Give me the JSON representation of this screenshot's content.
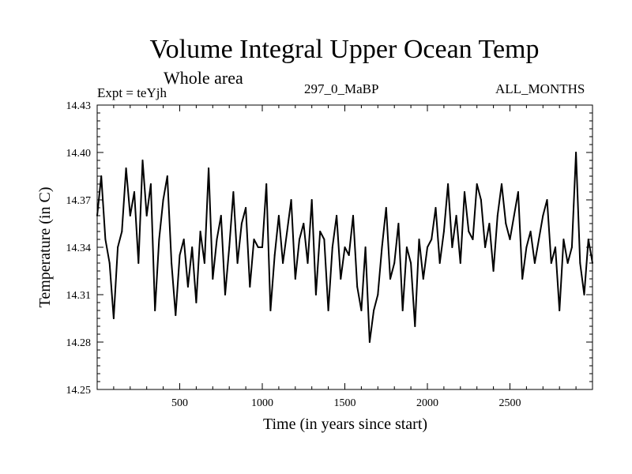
{
  "chart_data": {
    "type": "line",
    "title": "Volume Integral Upper Ocean Temp",
    "subtitle": "Whole area",
    "annotations": {
      "experiment": "Expt = teYjh",
      "run_label": "297_0_MaBP",
      "months": "ALL_MONTHS"
    },
    "xlabel": "Time (in years since start)",
    "ylabel": "Temperature (in C)",
    "xlim": [
      0,
      3000
    ],
    "ylim": [
      14.25,
      14.43
    ],
    "x_ticks": [
      500,
      1000,
      1500,
      2000,
      2500
    ],
    "y_ticks": [
      "14.25",
      "14.28",
      "14.31",
      "14.34",
      "14.37",
      "14.40",
      "14.43"
    ],
    "series": [
      {
        "name": "Volume Integral Upper Ocean Temp",
        "x": [
          0,
          25,
          50,
          75,
          100,
          125,
          150,
          175,
          200,
          225,
          250,
          275,
          300,
          325,
          350,
          375,
          400,
          425,
          450,
          475,
          500,
          525,
          550,
          575,
          600,
          625,
          650,
          675,
          700,
          725,
          750,
          775,
          800,
          825,
          850,
          875,
          900,
          925,
          950,
          975,
          1000,
          1025,
          1050,
          1075,
          1100,
          1125,
          1150,
          1175,
          1200,
          1225,
          1250,
          1275,
          1300,
          1325,
          1350,
          1375,
          1400,
          1425,
          1450,
          1475,
          1500,
          1525,
          1550,
          1575,
          1600,
          1625,
          1650,
          1675,
          1700,
          1725,
          1750,
          1775,
          1800,
          1825,
          1850,
          1875,
          1900,
          1925,
          1950,
          1975,
          2000,
          2025,
          2050,
          2075,
          2100,
          2125,
          2150,
          2175,
          2200,
          2225,
          2250,
          2275,
          2300,
          2325,
          2350,
          2375,
          2400,
          2425,
          2450,
          2475,
          2500,
          2525,
          2550,
          2575,
          2600,
          2625,
          2650,
          2675,
          2700,
          2725,
          2750,
          2775,
          2800,
          2825,
          2850,
          2875,
          2900,
          2925,
          2950,
          2975,
          3000
        ],
        "values": [
          14.36,
          14.385,
          14.345,
          14.33,
          14.295,
          14.34,
          14.35,
          14.39,
          14.36,
          14.375,
          14.33,
          14.395,
          14.36,
          14.38,
          14.3,
          14.345,
          14.37,
          14.385,
          14.33,
          14.297,
          14.335,
          14.345,
          14.315,
          14.34,
          14.305,
          14.35,
          14.33,
          14.39,
          14.32,
          14.345,
          14.36,
          14.31,
          14.34,
          14.375,
          14.33,
          14.355,
          14.365,
          14.315,
          14.345,
          14.34,
          14.34,
          14.38,
          14.3,
          14.335,
          14.36,
          14.33,
          14.35,
          14.37,
          14.32,
          14.345,
          14.355,
          14.33,
          14.37,
          14.31,
          14.35,
          14.345,
          14.3,
          14.34,
          14.36,
          14.32,
          14.34,
          14.335,
          14.36,
          14.315,
          14.3,
          14.34,
          14.28,
          14.3,
          14.31,
          14.34,
          14.365,
          14.32,
          14.33,
          14.355,
          14.3,
          14.34,
          14.33,
          14.29,
          14.345,
          14.32,
          14.34,
          14.345,
          14.365,
          14.33,
          14.35,
          14.38,
          14.34,
          14.36,
          14.33,
          14.375,
          14.35,
          14.345,
          14.38,
          14.37,
          14.34,
          14.355,
          14.325,
          14.36,
          14.38,
          14.355,
          14.345,
          14.36,
          14.375,
          14.32,
          14.34,
          14.35,
          14.33,
          14.345,
          14.36,
          14.37,
          14.33,
          14.34,
          14.3,
          14.345,
          14.33,
          14.34,
          14.4,
          14.33,
          14.31,
          14.345,
          14.33
        ]
      }
    ]
  }
}
